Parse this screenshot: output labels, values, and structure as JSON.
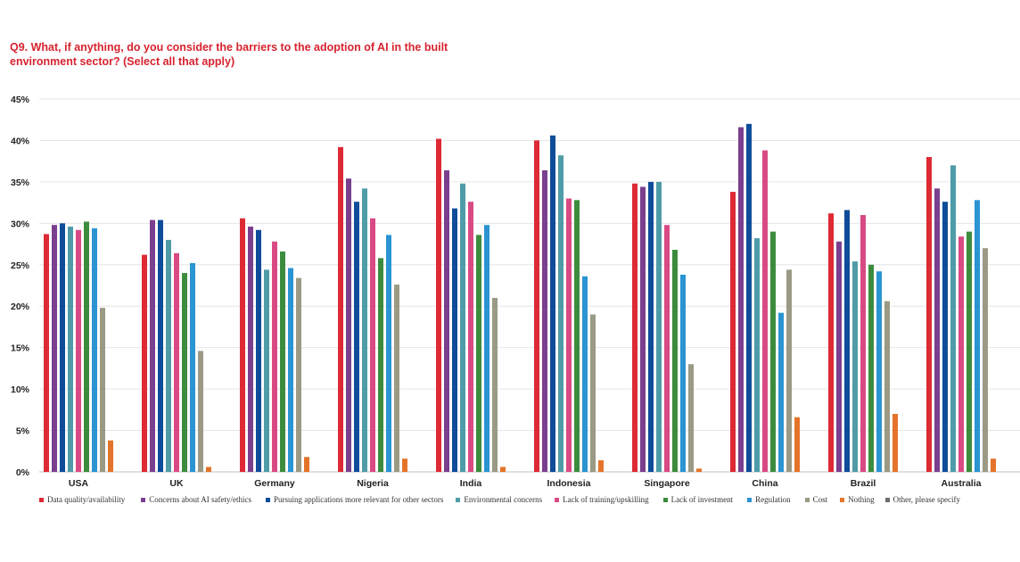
{
  "title": "Q9. What, if anything, do you consider the barriers to the adoption of AI in the built environment sector? (Select all that apply)",
  "chart_data": {
    "type": "bar",
    "title": "Q9. What, if anything, do you consider the barriers to the adoption of AI in the built environment sector? (Select all that apply)",
    "categories": [
      "USA",
      "UK",
      "Germany",
      "Nigeria",
      "India",
      "Indonesia",
      "Singapore",
      "China",
      "Brazil",
      "Australia"
    ],
    "ylim": [
      0,
      45
    ],
    "yticks": [
      "0%",
      "5%",
      "10%",
      "15%",
      "20%",
      "25%",
      "30%",
      "35%",
      "40%",
      "45%"
    ],
    "grid": true,
    "legend_position": "bottom",
    "series": [
      {
        "name": "Data quality/availability",
        "color": "#dd2a35",
        "values": [
          28.7,
          26.2,
          30.6,
          39.2,
          40.2,
          40.0,
          34.8,
          33.8,
          31.2,
          38.0
        ]
      },
      {
        "name": "Concerns about AI safety/ethics",
        "color": "#7b3f8f",
        "values": [
          29.8,
          30.4,
          29.6,
          35.4,
          36.4,
          36.4,
          34.4,
          41.6,
          27.8,
          34.2
        ]
      },
      {
        "name": "Pursuing applications more relevant for other sectors",
        "color": "#0f4c9a",
        "values": [
          30.0,
          30.4,
          29.2,
          32.6,
          31.8,
          40.6,
          35.0,
          42.0,
          31.6,
          32.6
        ]
      },
      {
        "name": "Environmental concerns",
        "color": "#4f9ca8",
        "values": [
          29.6,
          28.0,
          24.4,
          34.2,
          34.8,
          38.2,
          35.0,
          28.2,
          25.4,
          37.0
        ]
      },
      {
        "name": "Lack of training/upskilling",
        "color": "#d94a84",
        "values": [
          29.2,
          26.4,
          27.8,
          30.6,
          32.6,
          33.0,
          29.8,
          38.8,
          31.0,
          28.4
        ]
      },
      {
        "name": "Lack of investment",
        "color": "#3c8c3e",
        "values": [
          30.2,
          24.0,
          26.6,
          25.8,
          28.6,
          32.8,
          26.8,
          29.0,
          25.0,
          29.0
        ]
      },
      {
        "name": "Regulation",
        "color": "#2b94d2",
        "values": [
          29.4,
          25.2,
          24.6,
          28.6,
          29.8,
          23.6,
          23.8,
          19.2,
          24.2,
          32.8
        ]
      },
      {
        "name": "Cost",
        "color": "#9a9a85",
        "values": [
          19.8,
          14.6,
          23.4,
          22.6,
          21.0,
          19.0,
          13.0,
          24.4,
          20.6,
          27.0
        ]
      },
      {
        "name": "Nothing",
        "color": "#e4742a",
        "values": [
          3.8,
          0.6,
          1.8,
          1.6,
          0.6,
          1.4,
          0.4,
          6.6,
          7.0,
          1.6
        ]
      },
      {
        "name": "Other, please specify",
        "color": "#6e6e6e",
        "values": [
          null,
          null,
          null,
          null,
          null,
          null,
          null,
          null,
          null,
          null
        ]
      }
    ]
  }
}
